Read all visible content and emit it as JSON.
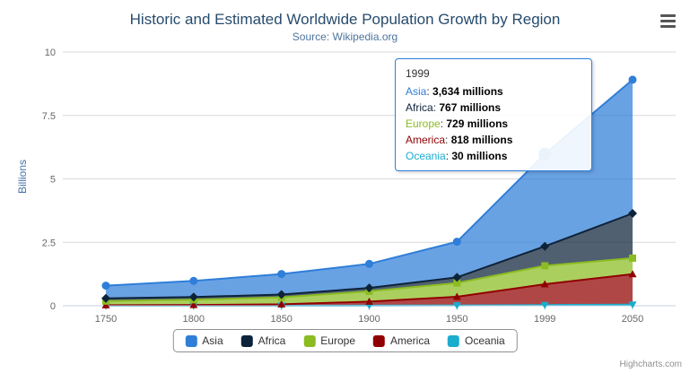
{
  "chart_data": {
    "type": "area",
    "stacking": "normal",
    "title": "Historic and Estimated Worldwide Population Growth by Region",
    "subtitle": "Source: Wikipedia.org",
    "ylabel": "Billions",
    "xlabel": "",
    "ylim": [
      0,
      10
    ],
    "yticks": [
      0,
      2.5,
      5,
      7.5,
      10
    ],
    "ytick_labels": [
      "0",
      "2.5",
      "5",
      "7.5",
      "10"
    ],
    "categories": [
      "1750",
      "1800",
      "1850",
      "1900",
      "1950",
      "1999",
      "2050"
    ],
    "unit": "millions",
    "grid": true,
    "legend_position": "bottom",
    "series": [
      {
        "name": "Asia",
        "color": "#2f7ed8",
        "marker": "circle",
        "values": [
          502,
          635,
          809,
          947,
          1402,
          3634,
          5268
        ]
      },
      {
        "name": "Africa",
        "color": "#0d233a",
        "marker": "diamond",
        "values": [
          106,
          107,
          111,
          133,
          221,
          767,
          1766
        ]
      },
      {
        "name": "Europe",
        "color": "#8bbc21",
        "marker": "square",
        "values": [
          163,
          203,
          276,
          408,
          547,
          729,
          628
        ]
      },
      {
        "name": "America",
        "color": "#910000",
        "marker": "triangle",
        "values": [
          18,
          31,
          54,
          156,
          339,
          818,
          1201
        ]
      },
      {
        "name": "Oceania",
        "color": "#1aadce",
        "marker": "triangle-down",
        "values": [
          2,
          2,
          2,
          6,
          13,
          30,
          46
        ]
      }
    ]
  },
  "tooltip": {
    "header": "1999",
    "highlight": {
      "series": "Asia",
      "category": "1999"
    },
    "rows": [
      {
        "name": "Asia",
        "value": "3,634 millions",
        "color": "#2f7ed8"
      },
      {
        "name": "Africa",
        "value": "767 millions",
        "color": "#0d233a"
      },
      {
        "name": "Europe",
        "value": "729 millions",
        "color": "#8bbc21"
      },
      {
        "name": "America",
        "value": "818 millions",
        "color": "#910000"
      },
      {
        "name": "Oceania",
        "value": "30 millions",
        "color": "#1aadce"
      }
    ]
  },
  "context_menu": {
    "icon": "hamburger-icon"
  },
  "credits": {
    "label": "Highcharts.com"
  }
}
